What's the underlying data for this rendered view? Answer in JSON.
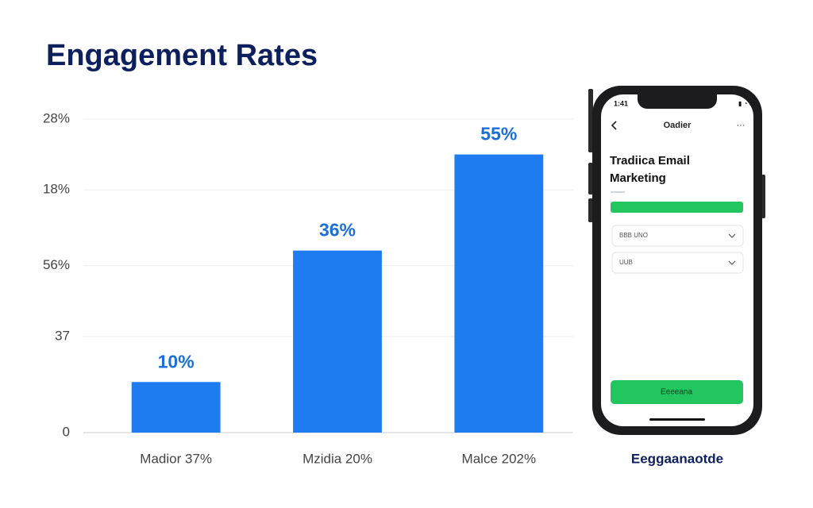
{
  "chart_data": {
    "type": "bar",
    "title": "Engagement Rates",
    "categories": [
      "Madior 37%",
      "Mzidia 20%",
      "Malce 202%"
    ],
    "values": [
      10,
      36,
      55
    ],
    "value_labels": [
      "10%",
      "36%",
      "55%"
    ],
    "color": "#1f7cf0",
    "label_color": "#1a6fd8",
    "ylim": [
      0,
      62
    ],
    "yticks": [
      0,
      {
        "value": 19,
        "label": "37"
      },
      {
        "value": 33,
        "label": "56%"
      },
      {
        "value": 48,
        "label": "18%"
      },
      {
        "value": 62,
        "label": "28%"
      }
    ],
    "grid": true
  },
  "phone": {
    "status_time": "1:41",
    "header": "Oadier",
    "heading": "Tradiica Email Marketing",
    "field_1": "BBB UNO",
    "field_2": "UUB",
    "button": "Eeeeana",
    "caption": "Eeggaanaotde"
  }
}
